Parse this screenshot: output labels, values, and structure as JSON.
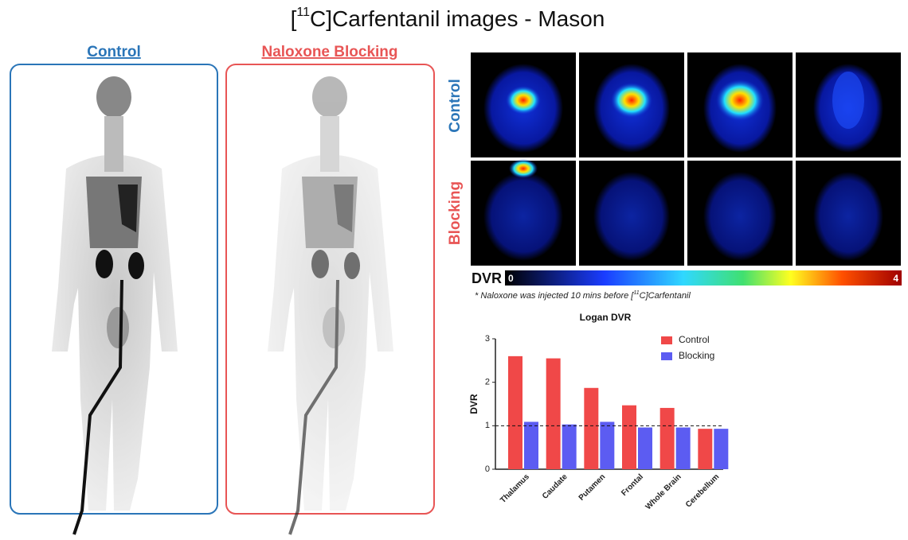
{
  "title": {
    "open": "[",
    "sup": "11",
    "rest": "C]Carfentanil images - Mason"
  },
  "body_panels": [
    "Control",
    "Naloxone Blocking"
  ],
  "brain_rows": [
    "Control",
    "Blocking"
  ],
  "colorbar": {
    "label": "DVR",
    "min": "0",
    "max": "4"
  },
  "footnote": {
    "open": "* Naloxone was injected 10 mins before [",
    "sup": "11",
    "rest": "C]Carfentanil"
  },
  "chart_data": {
    "type": "bar",
    "title": "Logan DVR",
    "y_label": "DVR",
    "categories": [
      "Thalamus",
      "Caudate",
      "Putamen",
      "Frontal",
      "Whole Brain",
      "Cerebellum"
    ],
    "series": [
      {
        "name": "Control",
        "color": "#f04848",
        "values": [
          2.6,
          2.55,
          1.87,
          1.47,
          1.41,
          0.93
        ]
      },
      {
        "name": "Blocking",
        "color": "#5c5cf2",
        "values": [
          1.09,
          1.03,
          1.09,
          0.96,
          0.96,
          0.93
        ]
      }
    ],
    "ylim": [
      0,
      3
    ],
    "yticks": [
      0,
      1,
      2,
      3
    ],
    "reference_line": 1
  }
}
